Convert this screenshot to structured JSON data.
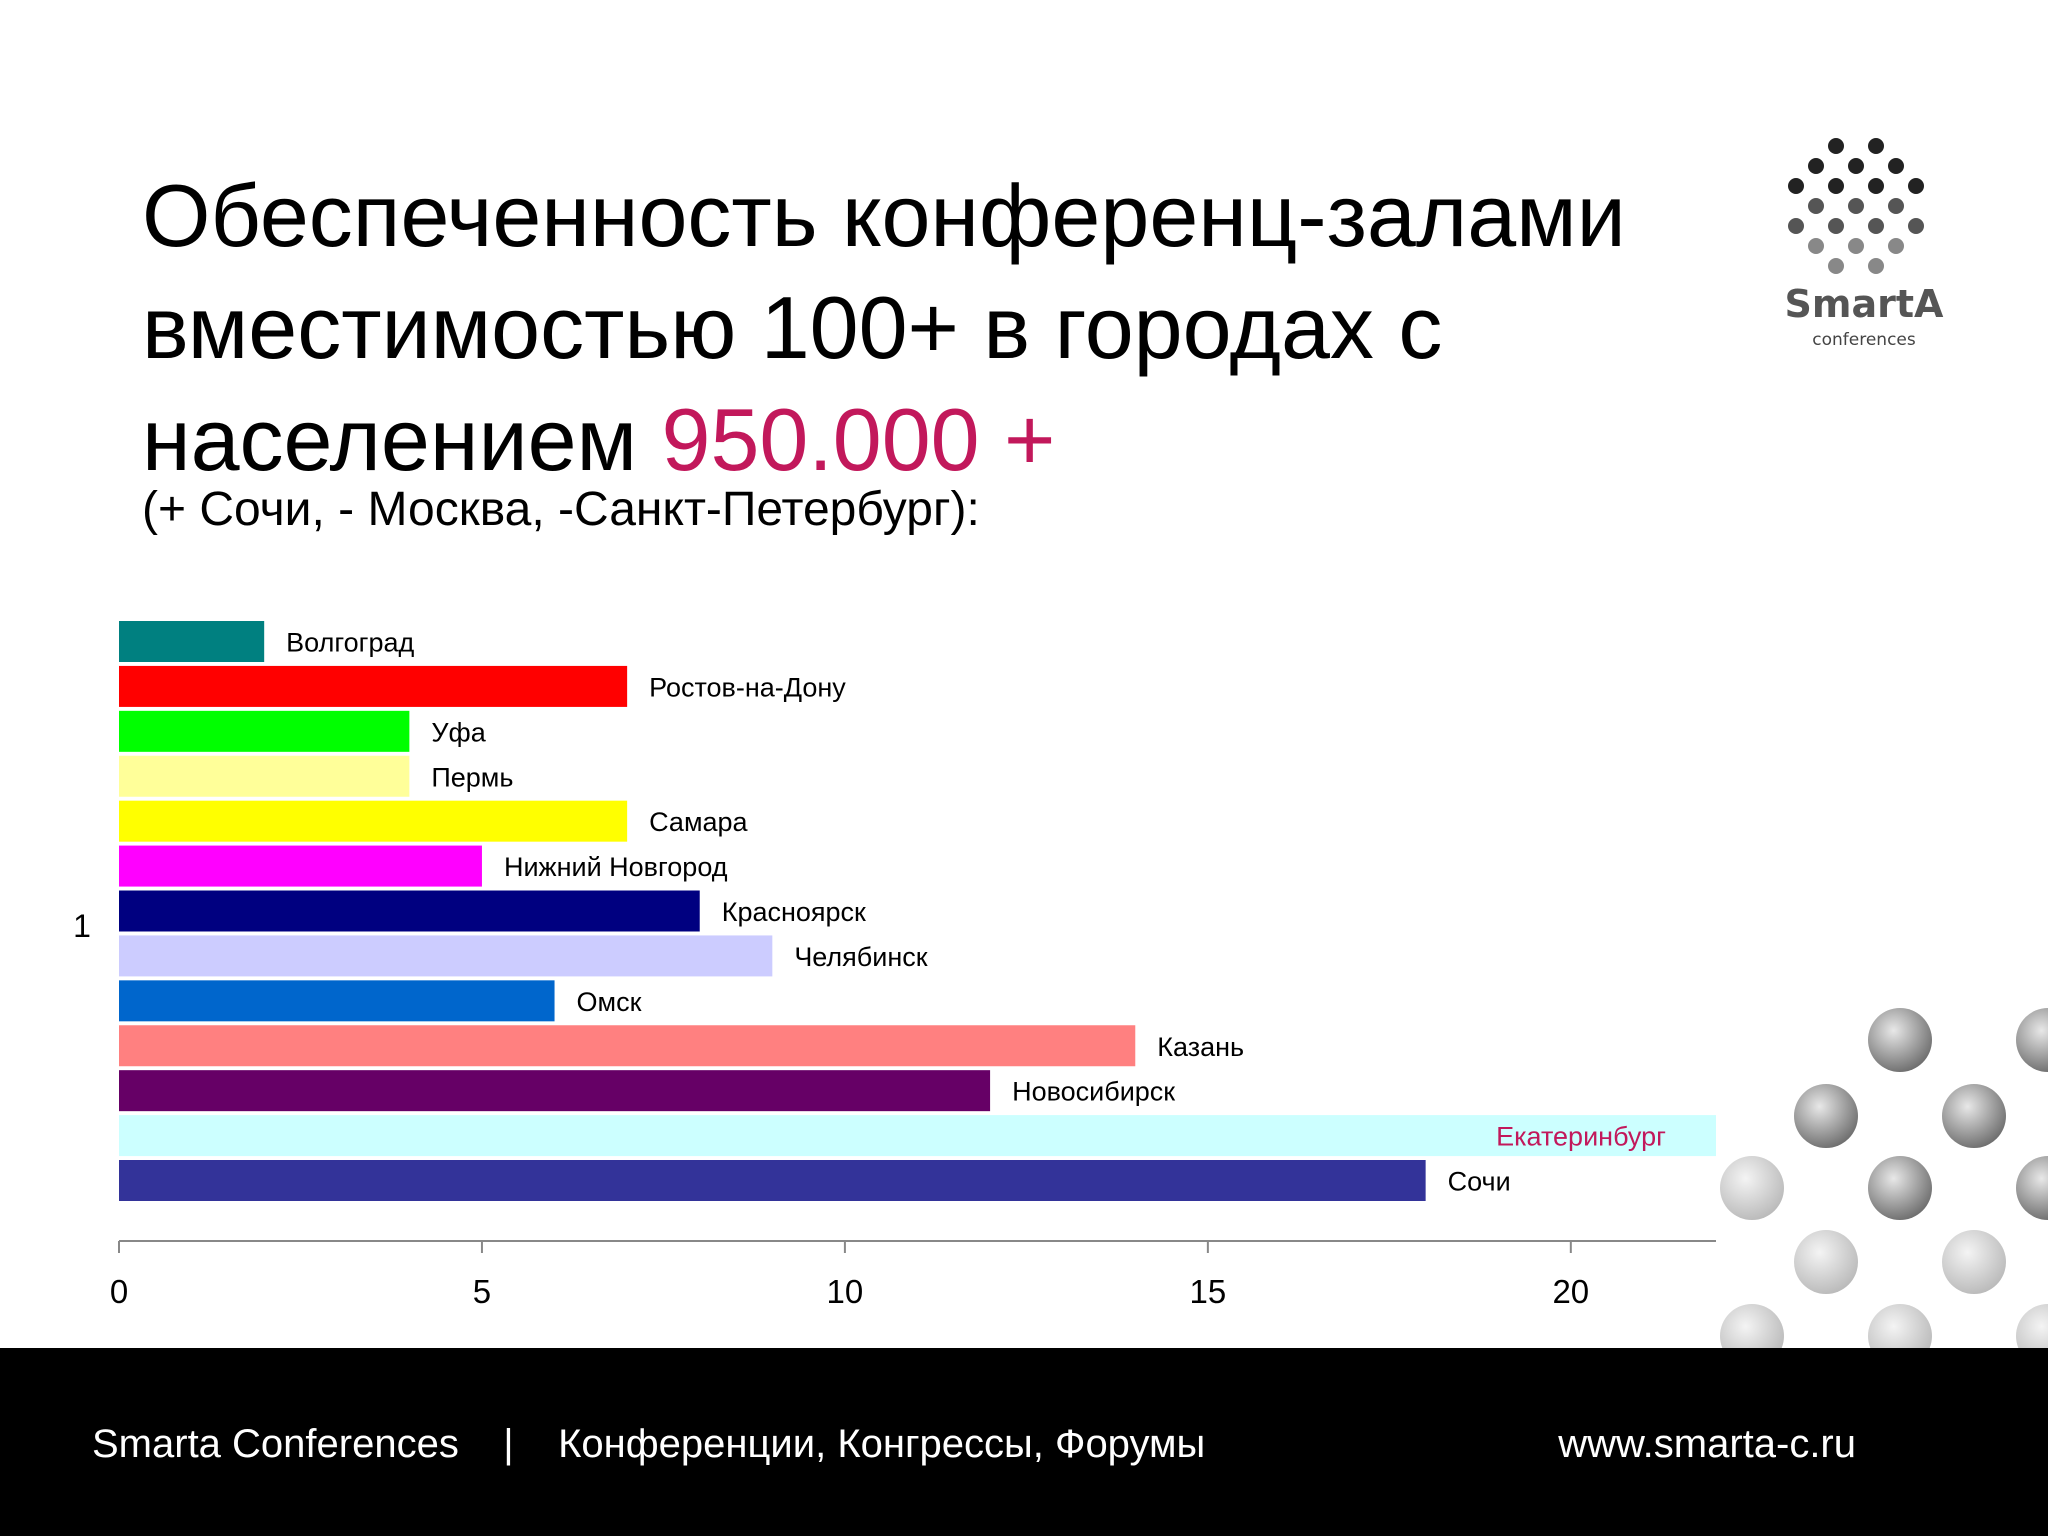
{
  "slide": {
    "title_main": "Обеспеченность конференц-залами вместимостью 100+ в городах с населением",
    "title_accent": "950.000 +",
    "subtitle": "(+ Сочи, - Москва, -Санкт-Петербург):"
  },
  "logo": {
    "name": "SmartA",
    "tagline": "conferences",
    "icon": "dot-sphere-logo-icon"
  },
  "footer": {
    "left_text": "Smarta Conferences    |    Конференции, Конгрессы, Форумы",
    "right_text": "www.smarta-c.ru"
  },
  "colors": {
    "accent": "#c2185b",
    "footer_bg": "#000000"
  },
  "chart_data": {
    "type": "bar",
    "orientation": "horizontal",
    "category_label": "1",
    "xlim": [
      0,
      22
    ],
    "xticks": [
      0,
      5,
      10,
      15,
      20
    ],
    "grid": false,
    "series": [
      {
        "name": "Волгоград",
        "value": 2,
        "color": "#008080"
      },
      {
        "name": "Ростов-на-Дону",
        "value": 7,
        "color": "#ff0000"
      },
      {
        "name": "Уфа",
        "value": 4,
        "color": "#00ff00"
      },
      {
        "name": "Пермь",
        "value": 4,
        "color": "#ffff99"
      },
      {
        "name": "Самара",
        "value": 7,
        "color": "#ffff00"
      },
      {
        "name": "Нижний Новгород",
        "value": 5,
        "color": "#ff00ff"
      },
      {
        "name": "Красноярск",
        "value": 8,
        "color": "#000080"
      },
      {
        "name": "Челябинск",
        "value": 9,
        "color": "#ccccff"
      },
      {
        "name": "Омск",
        "value": 6,
        "color": "#0066cc"
      },
      {
        "name": "Казань",
        "value": 14,
        "color": "#ff8080"
      },
      {
        "name": "Новосибирск",
        "value": 12,
        "color": "#660066"
      },
      {
        "name": "Екатеринбург",
        "value": 22,
        "color": "#ccffff",
        "label_color": "#c2185b"
      },
      {
        "name": "Сочи",
        "value": 18,
        "color": "#333399"
      }
    ]
  }
}
